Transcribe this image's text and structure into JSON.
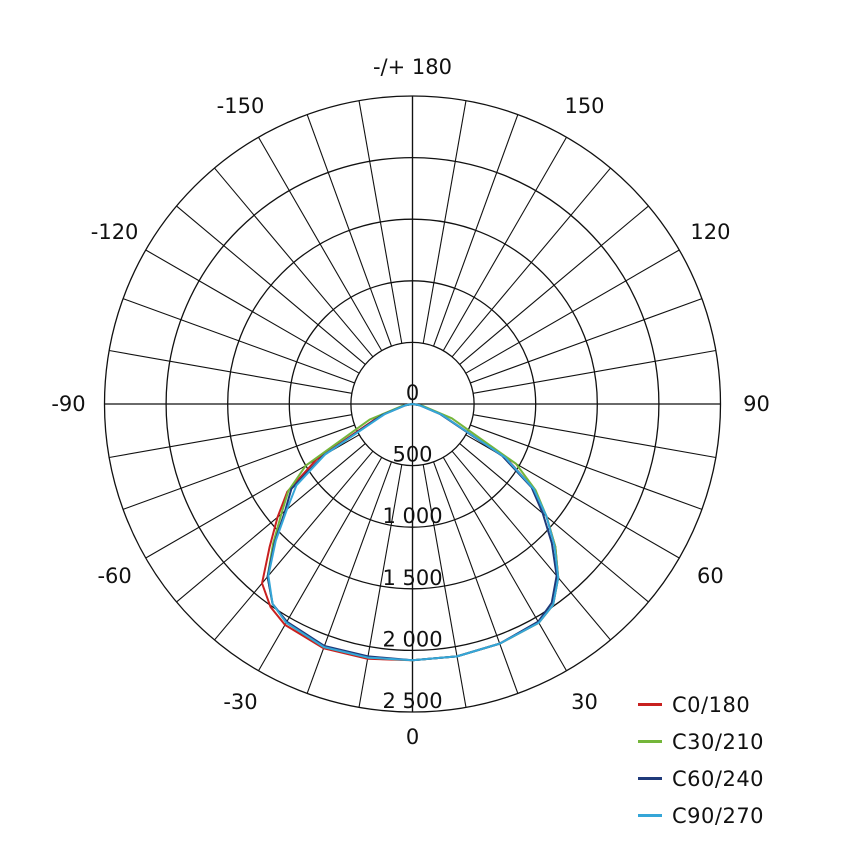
{
  "chart_data": {
    "type": "polar",
    "unit": "",
    "radial_ticks": [
      {
        "value": 0,
        "label": "0"
      },
      {
        "value": 500,
        "label": "500"
      },
      {
        "value": 1000,
        "label": "1 000"
      },
      {
        "value": 1500,
        "label": "1 500"
      },
      {
        "value": 2000,
        "label": "2 000"
      },
      {
        "value": 2500,
        "label": "2 500"
      }
    ],
    "angle_labels": [
      {
        "angle": 180,
        "label": "-/+ 180"
      },
      {
        "angle": -150,
        "label": "-150"
      },
      {
        "angle": 150,
        "label": "150"
      },
      {
        "angle": -120,
        "label": "-120"
      },
      {
        "angle": 120,
        "label": "120"
      },
      {
        "angle": -90,
        "label": "-90"
      },
      {
        "angle": 90,
        "label": "90"
      },
      {
        "angle": -60,
        "label": "-60"
      },
      {
        "angle": 60,
        "label": "60"
      },
      {
        "angle": -30,
        "label": "-30"
      },
      {
        "angle": 30,
        "label": "30"
      },
      {
        "angle": 0,
        "label": "0"
      }
    ],
    "rmax": 2500,
    "gamma_step_deg": 10,
    "legend_position": "bottom-right",
    "series": [
      {
        "name": "C0/180",
        "color": "#c8201f",
        "points": [
          [
            -90,
            0
          ],
          [
            -80,
            70
          ],
          [
            -70,
            280
          ],
          [
            -60,
            900
          ],
          [
            -55,
            1240
          ],
          [
            -50,
            1430
          ],
          [
            -45,
            1640
          ],
          [
            -40,
            1900
          ],
          [
            -35,
            2010
          ],
          [
            -30,
            2070
          ],
          [
            -20,
            2110
          ],
          [
            -10,
            2100
          ],
          [
            0,
            2080
          ],
          [
            10,
            2080
          ],
          [
            20,
            2070
          ],
          [
            30,
            2050
          ],
          [
            35,
            1990
          ],
          [
            40,
            1840
          ],
          [
            45,
            1640
          ],
          [
            50,
            1420
          ],
          [
            55,
            1200
          ],
          [
            60,
            880
          ],
          [
            70,
            250
          ],
          [
            80,
            70
          ],
          [
            90,
            0
          ]
        ]
      },
      {
        "name": "C30/210",
        "color": "#74b63a",
        "points": [
          [
            -90,
            0
          ],
          [
            -80,
            80
          ],
          [
            -70,
            370
          ],
          [
            -60,
            1000
          ],
          [
            -55,
            1230
          ],
          [
            -50,
            1390
          ],
          [
            -45,
            1600
          ],
          [
            -40,
            1830
          ],
          [
            -35,
            1980
          ],
          [
            -30,
            2050
          ],
          [
            -20,
            2100
          ],
          [
            -10,
            2090
          ],
          [
            0,
            2080
          ],
          [
            10,
            2080
          ],
          [
            20,
            2070
          ],
          [
            30,
            2050
          ],
          [
            35,
            1990
          ],
          [
            40,
            1840
          ],
          [
            45,
            1640
          ],
          [
            50,
            1420
          ],
          [
            55,
            1220
          ],
          [
            60,
            970
          ],
          [
            70,
            340
          ],
          [
            80,
            80
          ],
          [
            90,
            0
          ]
        ]
      },
      {
        "name": "C60/240",
        "color": "#1f3a7a",
        "points": [
          [
            -90,
            0
          ],
          [
            -80,
            60
          ],
          [
            -70,
            260
          ],
          [
            -60,
            830
          ],
          [
            -55,
            1200
          ],
          [
            -50,
            1350
          ],
          [
            -45,
            1580
          ],
          [
            -40,
            1830
          ],
          [
            -35,
            1980
          ],
          [
            -30,
            2040
          ],
          [
            -20,
            2090
          ],
          [
            -10,
            2080
          ],
          [
            0,
            2080
          ],
          [
            10,
            2080
          ],
          [
            20,
            2070
          ],
          [
            30,
            2040
          ],
          [
            35,
            1970
          ],
          [
            40,
            1820
          ],
          [
            45,
            1600
          ],
          [
            50,
            1380
          ],
          [
            55,
            1180
          ],
          [
            60,
            840
          ],
          [
            70,
            240
          ],
          [
            80,
            60
          ],
          [
            90,
            0
          ]
        ]
      },
      {
        "name": "C90/270",
        "color": "#35a6d8",
        "points": [
          [
            -90,
            0
          ],
          [
            -80,
            60
          ],
          [
            -70,
            240
          ],
          [
            -60,
            820
          ],
          [
            -55,
            1150
          ],
          [
            -50,
            1330
          ],
          [
            -45,
            1570
          ],
          [
            -40,
            1820
          ],
          [
            -35,
            1980
          ],
          [
            -30,
            2050
          ],
          [
            -20,
            2100
          ],
          [
            -10,
            2090
          ],
          [
            0,
            2080
          ],
          [
            10,
            2080
          ],
          [
            20,
            2070
          ],
          [
            30,
            2050
          ],
          [
            35,
            1990
          ],
          [
            40,
            1840
          ],
          [
            45,
            1630
          ],
          [
            50,
            1420
          ],
          [
            55,
            1200
          ],
          [
            60,
            870
          ],
          [
            70,
            250
          ],
          [
            80,
            60
          ],
          [
            90,
            0
          ]
        ]
      }
    ]
  }
}
